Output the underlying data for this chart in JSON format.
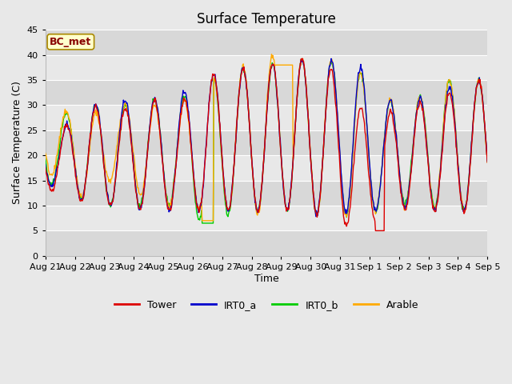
{
  "title": "Surface Temperature",
  "ylabel": "Surface Temperature (C)",
  "xlabel": "Time",
  "annotation": "BC_met",
  "ylim": [
    0,
    45
  ],
  "background_color": "#e8e8e8",
  "plot_bg_color": "#e8e8e8",
  "grid_color": "#ffffff",
  "legend_labels": [
    "Tower",
    "IRT0_a",
    "IRT0_b",
    "Arable"
  ],
  "legend_colors": [
    "#dd0000",
    "#0000cc",
    "#00cc00",
    "#ffaa00"
  ],
  "x_tick_labels": [
    "Aug 21",
    "Aug 22",
    "Aug 23",
    "Aug 24",
    "Aug 25",
    "Aug 26",
    "Aug 27",
    "Aug 28",
    "Aug 29",
    "Aug 30",
    "Aug 31",
    "Sep 1",
    "Sep 2",
    "Sep 3",
    "Sep 4",
    "Sep 5"
  ],
  "n_days": 15,
  "title_fontsize": 12,
  "label_fontsize": 9,
  "tick_fontsize": 8,
  "day_peaks_tower": [
    25,
    30,
    29,
    31,
    30,
    36,
    37,
    38,
    39,
    39,
    30,
    28,
    31,
    33,
    35
  ],
  "day_mins_tower": [
    13,
    10,
    10,
    9,
    9,
    9,
    9,
    9,
    9,
    8,
    5,
    8,
    10,
    9,
    9
  ],
  "day_peaks_irt0a": [
    25,
    30,
    31,
    31,
    32,
    36,
    37,
    38,
    39,
    39,
    39,
    31,
    31,
    33,
    35
  ],
  "day_mins_irt0a": [
    14,
    10,
    10,
    9,
    9,
    9,
    9,
    9,
    9,
    8,
    9,
    9,
    10,
    9,
    9
  ],
  "day_peaks_irt0b": [
    28,
    30,
    30,
    31,
    31,
    35,
    37,
    38,
    39,
    39,
    38,
    31,
    31,
    35,
    35
  ],
  "day_mins_irt0b": [
    14,
    10,
    10,
    10,
    10,
    6,
    9,
    9,
    9,
    8,
    8,
    9,
    11,
    9,
    9
  ],
  "day_peaks_arable": [
    29,
    28,
    30,
    30,
    30,
    35,
    37,
    40,
    39,
    39,
    38,
    31,
    31,
    35,
    35
  ],
  "day_mins_arable": [
    16,
    10,
    17,
    10,
    10,
    9,
    9,
    8,
    9,
    8,
    8,
    9,
    10,
    9,
    9
  ]
}
